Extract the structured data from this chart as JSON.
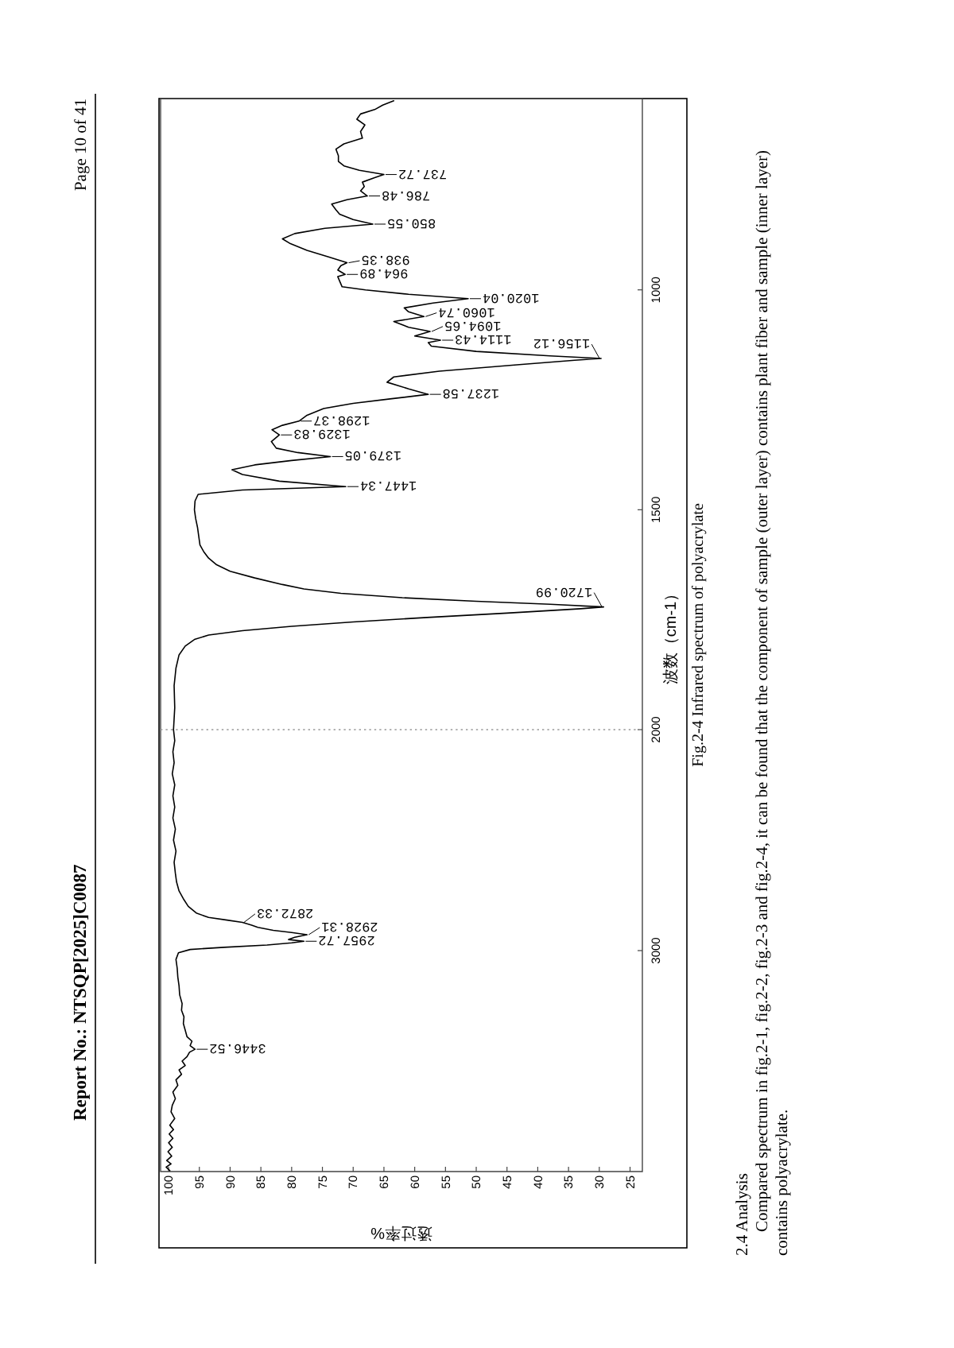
{
  "chart_data": [
    {
      "type": "line",
      "xlabel": "透过率%",
      "x": [
        99.8,
        100.4,
        99.6,
        100.3,
        99.5,
        100.1,
        99.4,
        100.0,
        99.3,
        99.9,
        99.2,
        99.8,
        99.0,
        99.6,
        99.4,
        98.9,
        99.3,
        98.5,
        98.8,
        97.9,
        98.3,
        97.3,
        97.8,
        97.0,
        96.6,
        95.7,
        96.5,
        96.2,
        97.0,
        97.3,
        97.6,
        97.5,
        97.9,
        97.8,
        98.2,
        98.3,
        98.5,
        98.6,
        98.8,
        98.4,
        96.5,
        91,
        84,
        80,
        78.0,
        80.5,
        79.5,
        77.5,
        80,
        83,
        85.5,
        86.5,
        88.0,
        90.5,
        93.5,
        95.5,
        96.8,
        97.5,
        98.3,
        98.7,
        98.9,
        99.1,
        98.8,
        99.2,
        98.9,
        99.3,
        99.0,
        99.3,
        99.0,
        99.4,
        99.1,
        99.3,
        99.0,
        99.2
      ],
      "values": [
        3996,
        3980,
        3965,
        3950,
        3930,
        3910,
        3890,
        3870,
        3850,
        3830,
        3810,
        3790,
        3760,
        3730,
        3700,
        3670,
        3640,
        3610,
        3585,
        3560,
        3540,
        3520,
        3500,
        3480,
        3460,
        3446.52,
        3430,
        3410,
        3390,
        3360,
        3330,
        3300,
        3270,
        3240,
        3200,
        3160,
        3120,
        3080,
        3040,
        3010,
        2995,
        2985,
        2975,
        2965,
        2957.72,
        2950,
        2940,
        2928.31,
        2918,
        2908,
        2895,
        2885,
        2872.33,
        2862,
        2850,
        2830,
        2800,
        2770,
        2730,
        2690,
        2650,
        2600,
        2550,
        2500,
        2450,
        2400,
        2350,
        2300,
        2250,
        2200,
        2150,
        2100,
        2050,
        2000
      ],
      "color": "#000000",
      "xlim": [
        101.3,
        23
      ],
      "ylim": [
        4000,
        2000
      ],
      "xticks": [
        100,
        95,
        90,
        85,
        80,
        75,
        70,
        65,
        60,
        55,
        50,
        45,
        40,
        35,
        30,
        25
      ],
      "yticks": [
        3000,
        2000
      ],
      "annotations": [
        "Report No.: NTSQP[2025]C0087",
        "Page 10 of 41",
        "Fig.2-4 Infrared spectrum of polyacrylate",
        "2.4 Analysis",
        "Compared spectrum in fig.2-1, fig.2-2, fig.2-3 and fig.2-4, it can be found that the component of sample (outer layer) contains plant fiber and sample (inner layer) contains polyacrylate.",
        {
          "text": "3446.52",
          "x": 95.7,
          "y": 3446.52
        },
        {
          "text": "2957.72",
          "x": 78.0,
          "y": 2957.72
        },
        {
          "text": "2928.31",
          "x": 77.5,
          "y": 2928.31
        },
        {
          "text": "2872.33",
          "x": 88.0,
          "y": 2872.33
        }
      ]
    },
    {
      "type": "line",
      "ylabel": "波数（cm-1）",
      "x": [
        99.2,
        99.0,
        99.1,
        98.8,
        98.3,
        97.3,
        95.8,
        93.5,
        88,
        80,
        70,
        58,
        45,
        33,
        29.3,
        38,
        50,
        62,
        72,
        78,
        81.5,
        86,
        90,
        92.2,
        93.5,
        94.3,
        94.9,
        95.1,
        95.3,
        95.6,
        95.8,
        95.7,
        95.2,
        88,
        71.2,
        82,
        88,
        89.7,
        86,
        80,
        73.7,
        79,
        82.5,
        83.3,
        82.0,
        83.2,
        81.5,
        78.8,
        77.5,
        74.8,
        70,
        64,
        57.8,
        61,
        64.5,
        63.4,
        56,
        43,
        34,
        29.7,
        38,
        50,
        57.3,
        57.8,
        55.8,
        60,
        57.5,
        61,
        63.4,
        58.5,
        61,
        61.7,
        57,
        51.3,
        61,
        68,
        71.8,
        72.2,
        72.5,
        71.3,
        72.5,
        72,
        71,
        74,
        77.5,
        80.2,
        81.5,
        79.5,
        74.6,
        66.8,
        70,
        72.2,
        72.8,
        73.5,
        71,
        67.7,
        68.8,
        68.2,
        68.5,
        66.5,
        65.0,
        69,
        71.5,
        72.4,
        72.4,
        72.8,
        71.5,
        68.5,
        68.8,
        68.1,
        69.4,
        68.8,
        66.5,
        65.2,
        63.4
      ],
      "values": [
        2000,
        1950,
        1900,
        1860,
        1830,
        1810,
        1795,
        1785,
        1775,
        1765,
        1755,
        1745,
        1735,
        1725,
        1720.99,
        1715,
        1708,
        1700,
        1690,
        1680,
        1670,
        1655,
        1640,
        1625,
        1610,
        1595,
        1580,
        1560,
        1540,
        1520,
        1500,
        1480,
        1465,
        1455,
        1447.34,
        1435,
        1420,
        1409,
        1398,
        1388,
        1379.05,
        1370,
        1360,
        1345,
        1329.83,
        1318,
        1308,
        1298.37,
        1285,
        1270,
        1258,
        1248,
        1237.58,
        1225,
        1210,
        1198,
        1185,
        1170,
        1160,
        1156.12,
        1150,
        1140,
        1128,
        1120,
        1114.43,
        1105,
        1094.65,
        1085,
        1072,
        1060.74,
        1050,
        1041,
        1030,
        1020.04,
        1010,
        1000,
        993,
        980,
        970,
        964.89,
        955,
        945,
        938.35,
        925,
        910,
        895,
        884,
        872,
        860,
        850.55,
        840,
        828,
        818,
        805,
        795,
        786.48,
        775,
        765,
        755,
        745,
        737.72,
        728,
        718,
        708,
        695,
        680,
        668,
        655,
        640,
        625,
        612,
        600,
        590,
        580,
        570
      ],
      "color": "#000000",
      "xlim": [
        101.3,
        23
      ],
      "ylim": [
        2000,
        565
      ],
      "yticks": [
        1500,
        1000
      ],
      "tick_labels": "y",
      "ref_lines": [
        {
          "axis": "y",
          "value": 2000,
          "line_style": "dotted",
          "color": "#9a9a9a"
        }
      ],
      "annotations": [
        {
          "text": "1720.99",
          "x": 29.3,
          "y": 1720.99
        },
        {
          "text": "1447.34",
          "x": 71.2,
          "y": 1447.34
        },
        {
          "text": "1379.05",
          "x": 73.7,
          "y": 1379.05
        },
        {
          "text": "1329.83",
          "x": 82.0,
          "y": 1329.83
        },
        {
          "text": "1298.37",
          "x": 78.8,
          "y": 1298.37
        },
        {
          "text": "1237.58",
          "x": 57.8,
          "y": 1237.58
        },
        {
          "text": "1156.12",
          "x": 29.7,
          "y": 1156.12
        },
        {
          "text": "1114.43",
          "x": 55.8,
          "y": 1114.43
        },
        {
          "text": "1094.65",
          "x": 57.5,
          "y": 1094.65
        },
        {
          "text": "1060.74",
          "x": 58.5,
          "y": 1060.74
        },
        {
          "text": "1020.04",
          "x": 51.3,
          "y": 1020.04
        },
        {
          "text": "964.89",
          "x": 71.3,
          "y": 964.89
        },
        {
          "text": "938.35",
          "x": 71,
          "y": 938.35
        },
        {
          "text": "850.55",
          "x": 66.8,
          "y": 850.55
        },
        {
          "text": "786.48",
          "x": 67.7,
          "y": 786.48
        },
        {
          "text": "737.72",
          "x": 65.0,
          "y": 737.72
        }
      ]
    }
  ]
}
